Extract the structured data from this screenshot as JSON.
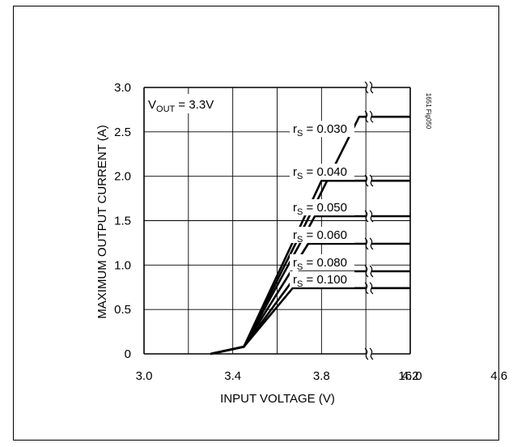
{
  "chart_data": {
    "type": "line",
    "title": "",
    "xlabel": "INPUT VOLTAGE (V)",
    "ylabel": "MAXIMUM OUTPUT CURRENT (A)",
    "condition": {
      "main": "V",
      "sub": "OUT",
      "rest": " = 3.3V"
    },
    "figure_code": "1651 Fig050",
    "x_tick_labels": [
      "3.0",
      "3.4",
      "3.8",
      "4.2",
      "4.6",
      "16.0"
    ],
    "y_tick_labels": [
      "0",
      "0.5",
      "1.0",
      "1.5",
      "2.0",
      "2.5",
      "3.0"
    ],
    "ylim": [
      0,
      3.0
    ],
    "grid": true,
    "x_axis_break": "between 4.6 and 16.0 (shown by break marks)",
    "series": [
      {
        "label_main": "r",
        "label_sub": "S",
        "label_rest": " = 0.030",
        "points": [
          [
            3.3,
            0
          ],
          [
            3.45,
            0.08
          ],
          [
            3.97,
            2.67
          ],
          [
            16.0,
            2.67
          ]
        ]
      },
      {
        "label_main": "r",
        "label_sub": "S",
        "label_rest": " = 0.040",
        "points": [
          [
            3.3,
            0
          ],
          [
            3.45,
            0.08
          ],
          [
            3.8,
            1.95
          ],
          [
            16.0,
            1.95
          ]
        ]
      },
      {
        "label_main": "r",
        "label_sub": "S",
        "label_rest": " = 0.050",
        "points": [
          [
            3.3,
            0
          ],
          [
            3.45,
            0.08
          ],
          [
            3.77,
            1.55
          ],
          [
            16.0,
            1.55
          ]
        ]
      },
      {
        "label_main": "r",
        "label_sub": "S",
        "label_rest": " = 0.060",
        "points": [
          [
            3.3,
            0
          ],
          [
            3.45,
            0.08
          ],
          [
            3.74,
            1.24
          ],
          [
            16.0,
            1.24
          ]
        ]
      },
      {
        "label_main": "r",
        "label_sub": "S",
        "label_rest": " = 0.080",
        "points": [
          [
            3.3,
            0
          ],
          [
            3.45,
            0.08
          ],
          [
            3.7,
            0.93
          ],
          [
            16.0,
            0.93
          ]
        ]
      },
      {
        "label_main": "r",
        "label_sub": "S",
        "label_rest": " = 0.100",
        "points": [
          [
            3.3,
            0
          ],
          [
            3.45,
            0.08
          ],
          [
            3.67,
            0.74
          ],
          [
            16.0,
            0.74
          ]
        ]
      }
    ]
  }
}
